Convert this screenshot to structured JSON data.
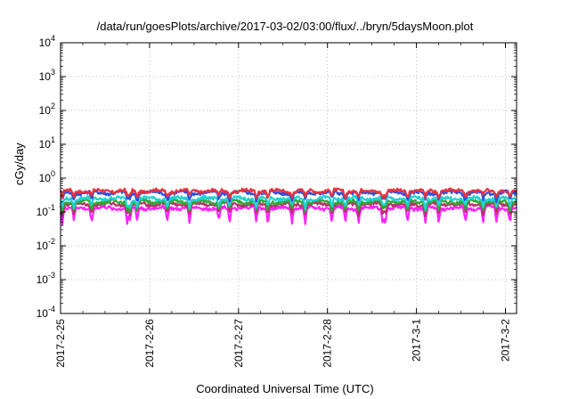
{
  "chart_data": {
    "type": "line",
    "title": "/data/run/goesPlots/archive/2017-03-02/03:00/flux/../bryn/5daysMoon.plot",
    "xlabel": "Coordinated Universal Time (UTC)",
    "ylabel": "cGy/day",
    "yscale": "log",
    "ylim": [
      0.0001,
      10000
    ],
    "ytick_values": [
      0.0001,
      0.001,
      0.01,
      0.1,
      1,
      10,
      100,
      1000,
      10000
    ],
    "ytick_labels": [
      {
        "base": "10",
        "exp": "-4"
      },
      {
        "base": "10",
        "exp": "-3"
      },
      {
        "base": "10",
        "exp": "-2"
      },
      {
        "base": "10",
        "exp": "-1"
      },
      {
        "base": "10",
        "exp": "0"
      },
      {
        "base": "10",
        "exp": "1"
      },
      {
        "base": "10",
        "exp": "2"
      },
      {
        "base": "10",
        "exp": "3"
      },
      {
        "base": "10",
        "exp": "4"
      }
    ],
    "x_range": [
      "2017-02-25 00:00",
      "2017-03-02 03:00"
    ],
    "xtick_labels": [
      "2017-2-25",
      "2017-2-26",
      "2017-2-27",
      "2017-2-28",
      "2017-3-1",
      "2017-3-2"
    ],
    "grid": true,
    "legend": "none",
    "series": [
      {
        "color": "#e8323c",
        "level": 0.42,
        "dip_depth": 0.35
      },
      {
        "color": "#2a4fe0",
        "level": 0.37,
        "dip_depth": 0.4
      },
      {
        "color": "#22d0d0",
        "level": 0.25,
        "dip_depth": 0.45
      },
      {
        "color": "#2ea836",
        "level": 0.2,
        "dip_depth": 0.45
      },
      {
        "color": "#b83268",
        "level": 0.17,
        "dip_depth": 0.5
      },
      {
        "color": "#ff22ff",
        "level": 0.13,
        "dip_depth": 0.65
      }
    ],
    "dips_day_offsets": [
      0.02,
      0.15,
      0.35,
      0.75,
      0.78,
      0.86,
      1.2,
      1.45,
      1.78,
      1.9,
      2.2,
      2.33,
      2.6,
      2.75,
      3.05,
      3.2,
      3.35,
      3.62,
      3.65,
      3.9,
      4.1,
      4.25,
      4.55,
      4.75,
      4.9,
      5.05
    ]
  }
}
